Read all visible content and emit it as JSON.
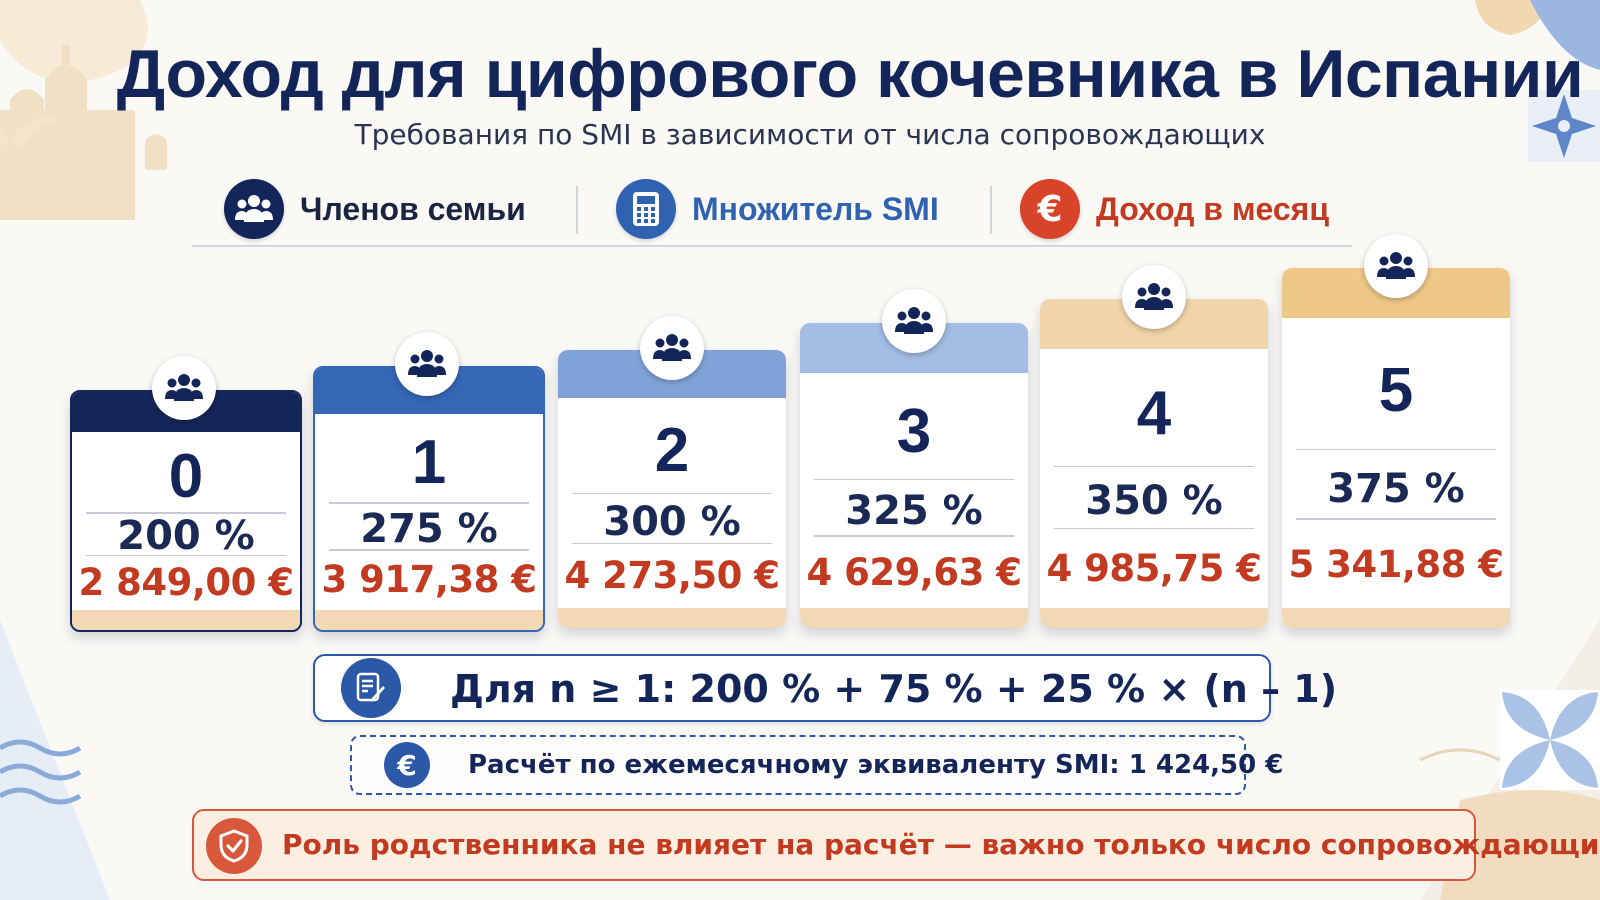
{
  "title": "Доход для цифрового кочевника в Испании",
  "subtitle": "Требования по SMI в зависимости от числа сопровождающих",
  "legend": [
    {
      "label": "Членов семьи",
      "icon": "family-icon",
      "color": "#142659"
    },
    {
      "label": "Множитель SMI",
      "icon": "calculator-icon",
      "color": "#2f62b0"
    },
    {
      "label": "Доход в месяц",
      "icon": "euro-icon",
      "color": "#d9432a"
    }
  ],
  "cards": [
    {
      "members": "0",
      "multiplier": "200 %",
      "income": "2 849,00 €",
      "header_color": "#142659"
    },
    {
      "members": "1",
      "multiplier": "275 %",
      "income": "3 917,38 €",
      "header_color": "#3467b6"
    },
    {
      "members": "2",
      "multiplier": "300 %",
      "income": "4 273,50 €",
      "header_color": "#7fa3d8"
    },
    {
      "members": "3",
      "multiplier": "325 %",
      "income": "4 629,63 €",
      "header_color": "#a3bde5"
    },
    {
      "members": "4",
      "multiplier": "350 %",
      "income": "4 985,75 €",
      "header_color": "#f1d4a9"
    },
    {
      "members": "5",
      "multiplier": "375 %",
      "income": "5 341,88 €",
      "header_color": "#efc786"
    }
  ],
  "formula": "Для n ≥ 1: 200 % + 75 % + 25 % × (n – 1)",
  "smi_note": "Расчёт по ежемесячному эквиваленту SMI: 1 424,50 €",
  "warning": "Роль родственника не влияет на расчёт — важно только число сопровождающих.",
  "colors": {
    "navy": "#142659",
    "blue": "#2f62b0",
    "red": "#c23a1f",
    "sand": "#f2d8b5"
  }
}
